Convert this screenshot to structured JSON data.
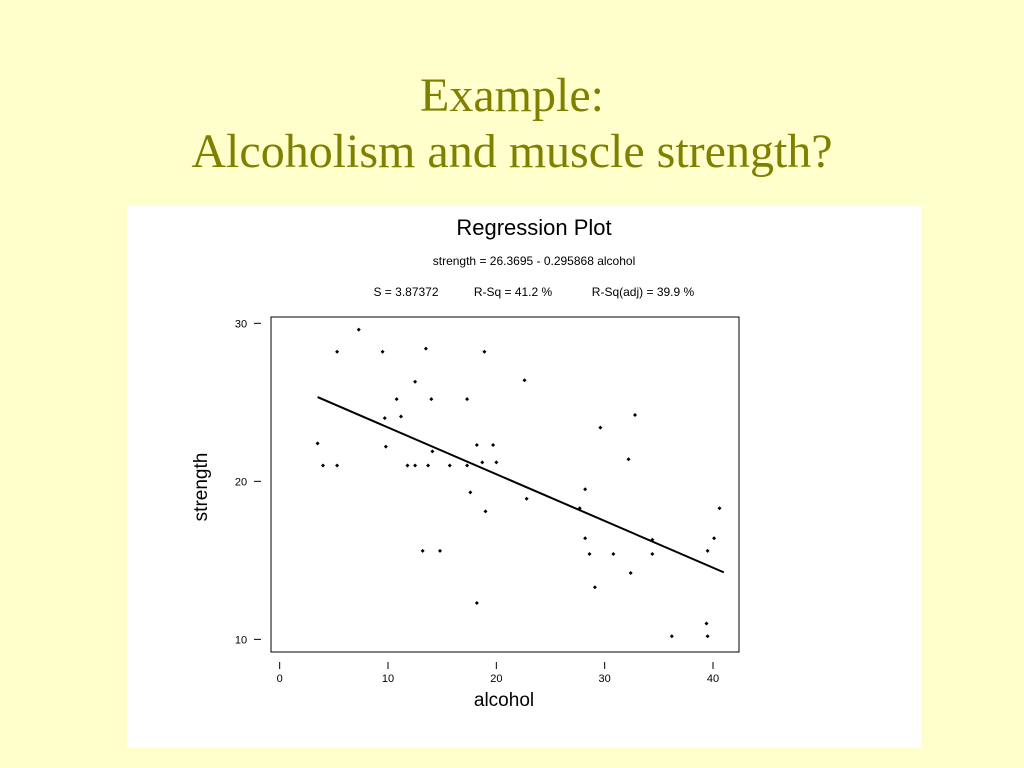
{
  "slide": {
    "title_line1": "Example:",
    "title_line2": "Alcoholism and muscle strength?",
    "title_color": "#808000",
    "background": "#ffffcc"
  },
  "chart_data": {
    "type": "scatter",
    "title": "Regression Plot",
    "equation": "strength = 26.3695 - 0.295868 alcohol",
    "stats": {
      "s": "S = 3.87372",
      "rsq": "R-Sq = 41.2 %",
      "rsq_adj": "R-Sq(adj) = 39.9 %"
    },
    "xlabel": "alcohol",
    "ylabel": "strength",
    "xlim": [
      -0.8,
      42.4
    ],
    "ylim": [
      9.2,
      30.4
    ],
    "xticks": [
      0,
      10,
      20,
      30,
      40
    ],
    "yticks": [
      10,
      20,
      30
    ],
    "regression": {
      "intercept": 26.3695,
      "slope": -0.295868,
      "x_range": [
        3.5,
        41
      ]
    },
    "points": [
      {
        "x": 3.5,
        "y": 22.4
      },
      {
        "x": 4.0,
        "y": 21.0
      },
      {
        "x": 5.3,
        "y": 28.2
      },
      {
        "x": 5.3,
        "y": 21.0
      },
      {
        "x": 7.3,
        "y": 29.6
      },
      {
        "x": 9.5,
        "y": 28.2
      },
      {
        "x": 9.7,
        "y": 24.0
      },
      {
        "x": 9.8,
        "y": 22.2
      },
      {
        "x": 10.8,
        "y": 25.2
      },
      {
        "x": 11.2,
        "y": 24.1
      },
      {
        "x": 11.8,
        "y": 21.0
      },
      {
        "x": 12.5,
        "y": 26.3
      },
      {
        "x": 12.5,
        "y": 21.0
      },
      {
        "x": 13.2,
        "y": 15.6
      },
      {
        "x": 13.5,
        "y": 28.4
      },
      {
        "x": 13.7,
        "y": 21.0
      },
      {
        "x": 14.0,
        "y": 25.2
      },
      {
        "x": 14.1,
        "y": 21.9
      },
      {
        "x": 14.8,
        "y": 15.6
      },
      {
        "x": 15.7,
        "y": 21.0
      },
      {
        "x": 17.3,
        "y": 25.2
      },
      {
        "x": 17.3,
        "y": 21.0
      },
      {
        "x": 17.6,
        "y": 19.3
      },
      {
        "x": 18.2,
        "y": 22.3
      },
      {
        "x": 18.2,
        "y": 12.3
      },
      {
        "x": 18.7,
        "y": 21.2
      },
      {
        "x": 18.9,
        "y": 28.2
      },
      {
        "x": 19.0,
        "y": 18.1
      },
      {
        "x": 19.7,
        "y": 22.3
      },
      {
        "x": 20.0,
        "y": 21.2
      },
      {
        "x": 22.6,
        "y": 26.4
      },
      {
        "x": 22.8,
        "y": 18.9
      },
      {
        "x": 27.7,
        "y": 18.3
      },
      {
        "x": 28.2,
        "y": 19.5
      },
      {
        "x": 28.2,
        "y": 16.4
      },
      {
        "x": 28.6,
        "y": 15.4
      },
      {
        "x": 29.1,
        "y": 13.3
      },
      {
        "x": 29.6,
        "y": 23.4
      },
      {
        "x": 30.8,
        "y": 15.4
      },
      {
        "x": 32.2,
        "y": 21.4
      },
      {
        "x": 32.4,
        "y": 14.2
      },
      {
        "x": 32.8,
        "y": 24.2
      },
      {
        "x": 34.4,
        "y": 16.3
      },
      {
        "x": 34.4,
        "y": 15.4
      },
      {
        "x": 36.2,
        "y": 10.2
      },
      {
        "x": 39.4,
        "y": 11.0
      },
      {
        "x": 39.5,
        "y": 10.2
      },
      {
        "x": 39.5,
        "y": 15.6
      },
      {
        "x": 40.1,
        "y": 16.4
      },
      {
        "x": 40.6,
        "y": 18.3
      }
    ]
  }
}
